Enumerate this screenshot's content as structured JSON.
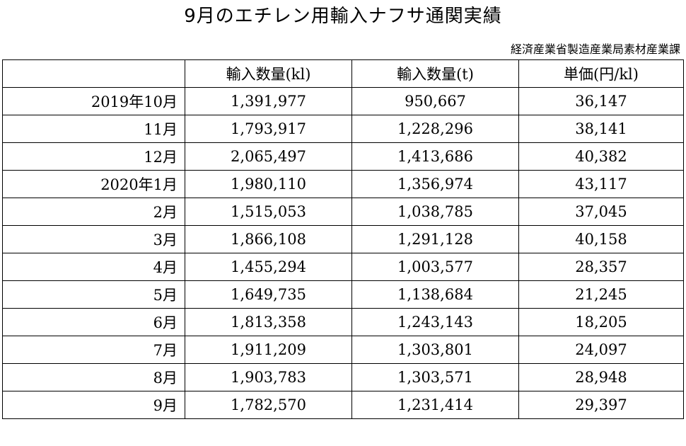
{
  "title": "9月のエチレン用輸入ナフサ通関実績",
  "source": "経済産業省製造産業局素材産業課",
  "table": {
    "columns": [
      "",
      "輸入数量(kl)",
      "輸入数量(t)",
      "単価(円/kl)"
    ],
    "rows": [
      {
        "period": "2019年10月",
        "volume_kl": "1,391,977",
        "volume_t": "950,667",
        "unit_price": "36,147"
      },
      {
        "period": "11月",
        "volume_kl": "1,793,917",
        "volume_t": "1,228,296",
        "unit_price": "38,141"
      },
      {
        "period": "12月",
        "volume_kl": "2,065,497",
        "volume_t": "1,413,686",
        "unit_price": "40,382"
      },
      {
        "period": "2020年1月",
        "volume_kl": "1,980,110",
        "volume_t": "1,356,974",
        "unit_price": "43,117"
      },
      {
        "period": "2月",
        "volume_kl": "1,515,053",
        "volume_t": "1,038,785",
        "unit_price": "37,045"
      },
      {
        "period": "3月",
        "volume_kl": "1,866,108",
        "volume_t": "1,291,128",
        "unit_price": "40,158"
      },
      {
        "period": "4月",
        "volume_kl": "1,455,294",
        "volume_t": "1,003,577",
        "unit_price": "28,357"
      },
      {
        "period": "5月",
        "volume_kl": "1,649,735",
        "volume_t": "1,138,684",
        "unit_price": "21,245"
      },
      {
        "period": "6月",
        "volume_kl": "1,813,358",
        "volume_t": "1,243,143",
        "unit_price": "18,205"
      },
      {
        "period": "7月",
        "volume_kl": "1,911,209",
        "volume_t": "1,303,801",
        "unit_price": "24,097"
      },
      {
        "period": "8月",
        "volume_kl": "1,903,783",
        "volume_t": "1,303,571",
        "unit_price": "28,948"
      },
      {
        "period": "9月",
        "volume_kl": "1,782,570",
        "volume_t": "1,231,414",
        "unit_price": "29,397"
      }
    ]
  }
}
